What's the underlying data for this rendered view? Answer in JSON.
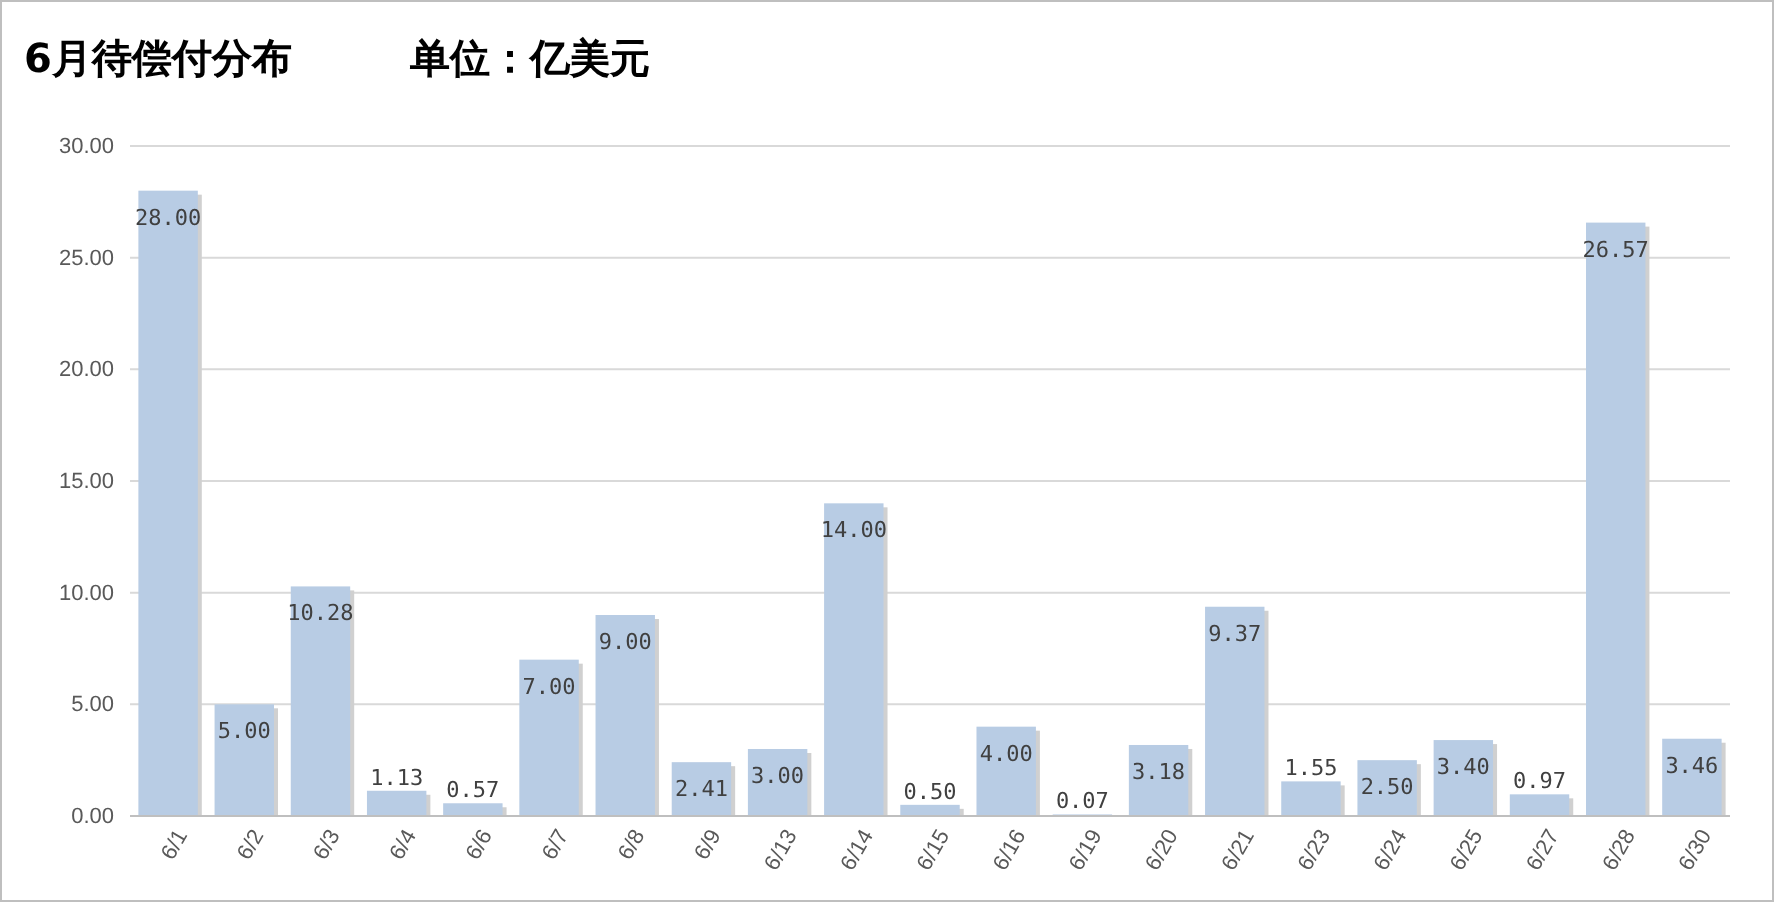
{
  "chart_data": {
    "type": "bar",
    "title": "6月待偿付分布",
    "subtitle": "单位：亿美元",
    "categories": [
      "6/1",
      "6/2",
      "6/3",
      "6/4",
      "6/6",
      "6/7",
      "6/8",
      "6/9",
      "6/13",
      "6/14",
      "6/15",
      "6/16",
      "6/19",
      "6/20",
      "6/21",
      "6/23",
      "6/24",
      "6/25",
      "6/27",
      "6/28",
      "6/30"
    ],
    "values": [
      28,
      5,
      10.28,
      1.13,
      0.57,
      7,
      9,
      2.41,
      3,
      14,
      0.5,
      4,
      0.07,
      3.18,
      9.37,
      1.55,
      2.5,
      3.4,
      0.97,
      26.57,
      3.46
    ],
    "value_labels": [
      "28.00",
      "5.00",
      "10.28",
      "1.13",
      "0.57",
      "7.00",
      "9.00",
      "2.41",
      "3.00",
      "14.00",
      "0.50",
      "4.00",
      "0.07",
      "3.18",
      "9.37",
      "1.55",
      "2.50",
      "3.40",
      "0.97",
      "26.57",
      "3.46"
    ],
    "color": "#b8cce4",
    "ylim": [
      0,
      30
    ],
    "yticks": [
      {
        "value": 0,
        "label": "0.00"
      },
      {
        "value": 5,
        "label": "5.00"
      },
      {
        "value": 10,
        "label": "10.00"
      },
      {
        "value": 15,
        "label": "15.00"
      },
      {
        "value": 20,
        "label": "20.00"
      },
      {
        "value": 25,
        "label": "25.00"
      },
      {
        "value": 30,
        "label": "30.00"
      }
    ],
    "grid": "y"
  }
}
